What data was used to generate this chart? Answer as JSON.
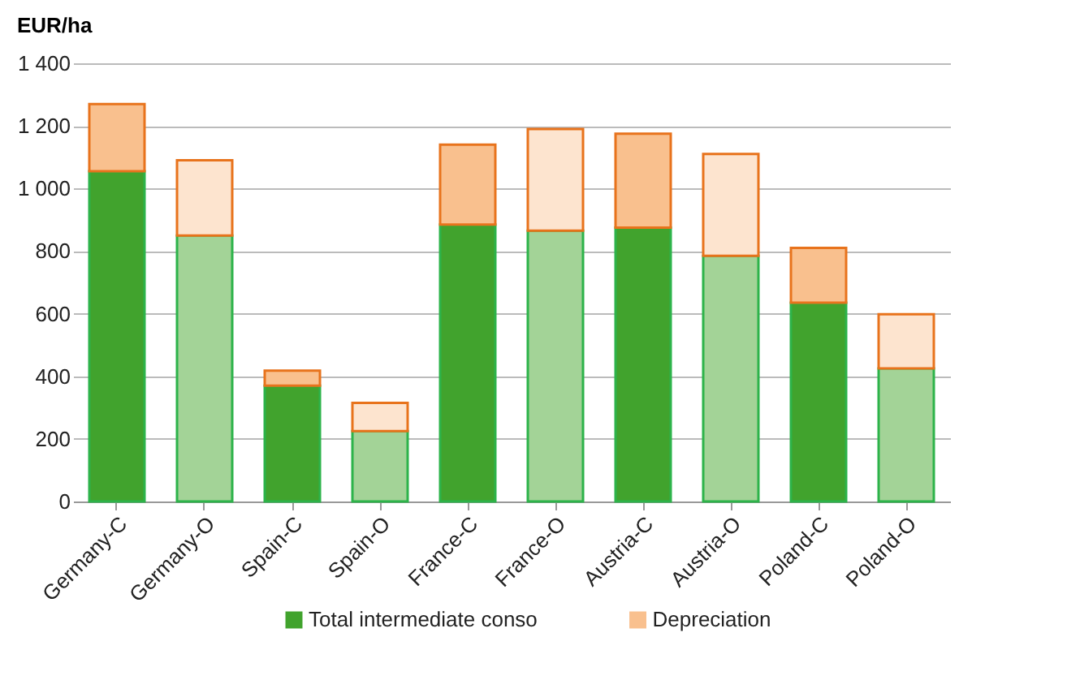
{
  "chart_data": {
    "type": "bar",
    "stacked": true,
    "ylabel": "EUR/ha",
    "categories": [
      "Germany-C",
      "Germany-O",
      "Spain-C",
      "Spain-O",
      "France-C",
      "France-O",
      "Austria-C",
      "Austria-O",
      "Poland-C",
      "Poland-O"
    ],
    "series": [
      {
        "name": "Total intermediate conso",
        "color": "#41a32d",
        "colors": [
          "#41a32d",
          "#a3d397",
          "#41a32d",
          "#a3d397",
          "#41a32d",
          "#a3d397",
          "#41a32d",
          "#a3d397",
          "#41a32d",
          "#a3d397"
        ],
        "values": [
          1055,
          850,
          370,
          225,
          885,
          865,
          875,
          785,
          635,
          425
        ]
      },
      {
        "name": "Depreciation",
        "color": "#f9c08e",
        "colors": [
          "#f9c08e",
          "#fde4cf",
          "#f9c08e",
          "#fde4cf",
          "#f9c08e",
          "#fde4cf",
          "#f9c08e",
          "#fde4cf",
          "#f9c08e",
          "#fde4cf"
        ],
        "values": [
          215,
          240,
          48,
          90,
          255,
          325,
          300,
          325,
          175,
          173
        ]
      }
    ],
    "ylim": [
      0,
      1400
    ],
    "yticks": [
      {
        "value": 0,
        "label": "0"
      },
      {
        "value": 200,
        "label": "200"
      },
      {
        "value": 400,
        "label": "400"
      },
      {
        "value": 600,
        "label": "600"
      },
      {
        "value": 800,
        "label": "800"
      },
      {
        "value": 1000,
        "label": "1 000"
      },
      {
        "value": 1200,
        "label": "1 200"
      },
      {
        "value": 1400,
        "label": "1 400"
      }
    ],
    "grid": "y",
    "legend": "bottom"
  }
}
